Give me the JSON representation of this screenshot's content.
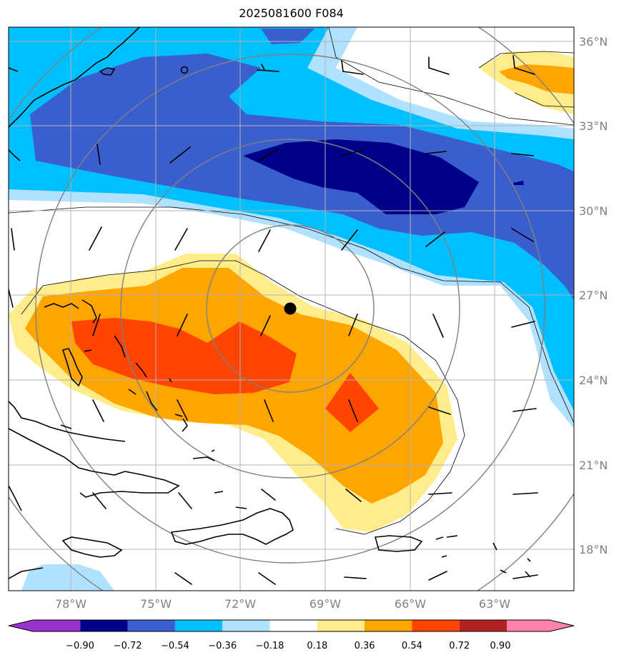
{
  "title": "2025081600 F084",
  "map": {
    "lon_range": [
      -80.2,
      -60.8
    ],
    "lat_range": [
      16.2,
      36.6
    ],
    "lat_ticks": [
      "36°N",
      "33°N",
      "30°N",
      "27°N",
      "24°N",
      "21°N",
      "18°N"
    ],
    "lon_ticks": [
      "78°W",
      "75°W",
      "72°W",
      "69°W",
      "66°W",
      "63°W"
    ],
    "gridlines": true,
    "storm_center": {
      "lon": -70.3,
      "lat": 26.5
    }
  },
  "colorbar": {
    "ticks": [
      "−0.90",
      "−0.72",
      "−0.54",
      "−0.36",
      "−0.18",
      "0.18",
      "0.36",
      "0.54",
      "0.72",
      "0.90"
    ],
    "colors": [
      "#9a32cd",
      "#00008b",
      "#3a5fcd",
      "#00bfff",
      "#b0e2ff",
      "#ffffff",
      "#ffec8b",
      "#ffa500",
      "#ff4500",
      "#b22222",
      "#ff82ab"
    ]
  }
}
